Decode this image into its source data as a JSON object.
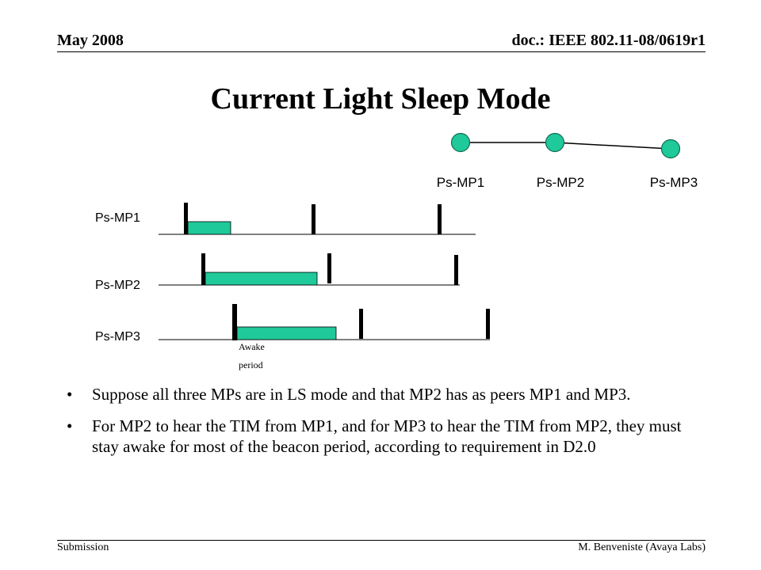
{
  "header": {
    "date": "May 2008",
    "doc": "doc.: IEEE 802.11-08/0619r1"
  },
  "title": "Current Light Sleep Mode",
  "topology": {
    "nodes": [
      {
        "label": "Ps-MP1"
      },
      {
        "label": "Ps-MP2"
      },
      {
        "label": "Ps-MP3"
      }
    ],
    "node_color": "#1fc99a"
  },
  "timeline": {
    "rows": [
      {
        "label": "Ps-MP1"
      },
      {
        "label": "Ps-MP2"
      },
      {
        "label": "Ps-MP3"
      }
    ],
    "awake_color": "#1fc99a",
    "awake_label_line1": "Awake",
    "awake_label_line2": "period"
  },
  "bullets": [
    "Suppose all three MPs are in LS mode and that MP2 has as peers MP1 and MP3.",
    "For MP2 to hear the TIM from MP1, and for MP3 to hear the TIM from MP2, they must stay awake for most of the beacon period, according to requirement in D2.0"
  ],
  "bullet_glyph": "•",
  "footer": {
    "left": "Submission",
    "right": "M. Benveniste (Avaya Labs)"
  }
}
